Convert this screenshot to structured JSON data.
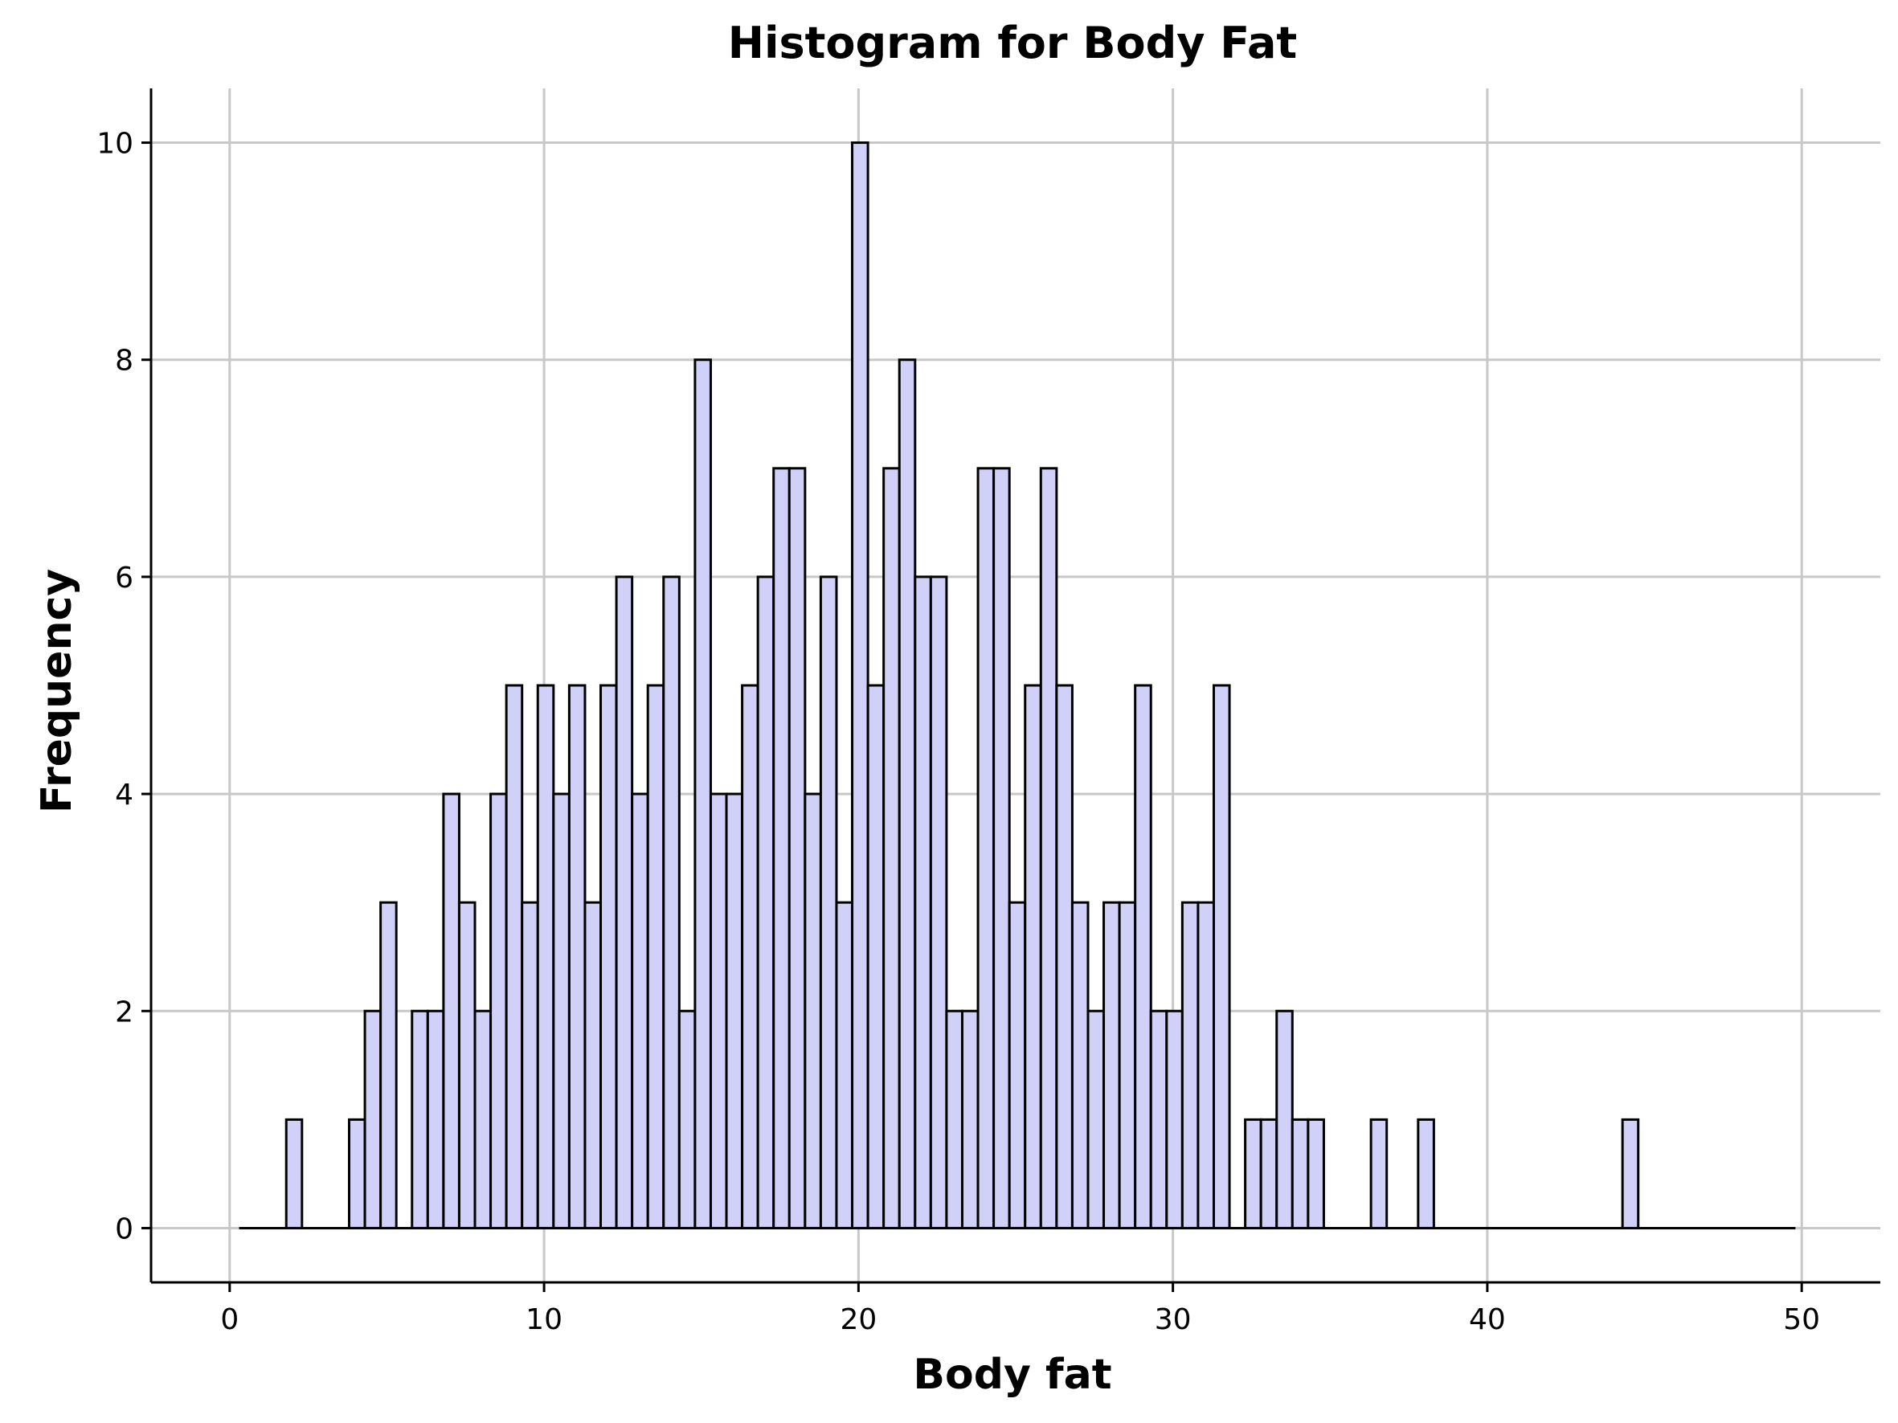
{
  "chart_data": {
    "type": "bar",
    "title": "Histogram for Body Fat",
    "xlabel": "Body fat",
    "ylabel": "Frequency",
    "xlim": [
      -2.5,
      52.5
    ],
    "ylim": [
      -0.5,
      10.5
    ],
    "xticks": [
      0,
      10,
      20,
      30,
      40,
      50
    ],
    "yticks": [
      0,
      2,
      4,
      6,
      8,
      10
    ],
    "grid": true,
    "bin_start": 0.3,
    "bin_width": 0.5,
    "bin_count": 99,
    "counts": [
      0,
      0,
      0,
      1,
      0,
      0,
      0,
      1,
      2,
      3,
      0,
      2,
      2,
      4,
      3,
      2,
      4,
      5,
      3,
      5,
      4,
      5,
      3,
      5,
      6,
      4,
      5,
      6,
      2,
      8,
      4,
      4,
      5,
      6,
      7,
      7,
      4,
      6,
      3,
      10,
      5,
      7,
      8,
      6,
      6,
      2,
      2,
      7,
      7,
      3,
      5,
      7,
      5,
      3,
      2,
      3,
      3,
      5,
      2,
      2,
      3,
      3,
      5,
      0,
      1,
      1,
      2,
      1,
      1,
      0,
      0,
      0,
      1,
      0,
      0,
      1,
      0,
      0,
      0,
      0,
      0,
      0,
      0,
      0,
      0,
      0,
      0,
      0,
      1,
      0,
      0,
      0,
      0,
      0,
      0,
      0,
      0,
      0,
      0
    ],
    "colors": {
      "bar_fill": "#d0d0f8",
      "bar_edge": "#000000",
      "grid": "#c8c8c8"
    }
  }
}
